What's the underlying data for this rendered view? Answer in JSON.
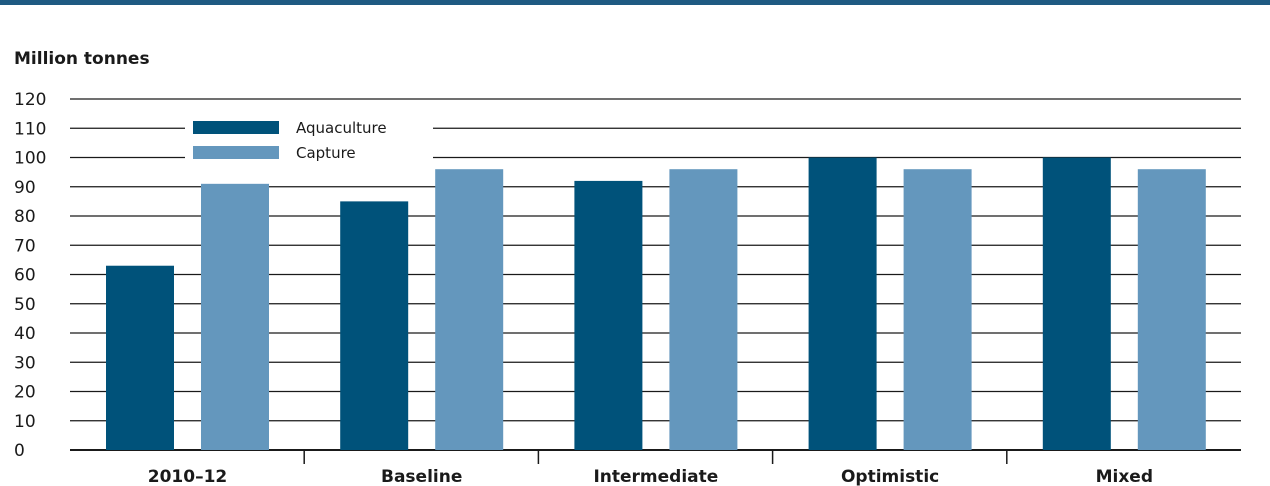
{
  "chart_data": {
    "type": "bar",
    "title": "",
    "ylabel": "Million tonnes",
    "xlabel": "",
    "ylim": [
      0,
      120
    ],
    "yticks": [
      0,
      10,
      20,
      30,
      40,
      50,
      60,
      70,
      80,
      90,
      100,
      110,
      120
    ],
    "categories": [
      "2010–12",
      "Baseline",
      "Intermediate",
      "Optimistic",
      "Mixed"
    ],
    "series": [
      {
        "name": "Aquaculture",
        "color": "#00527a",
        "values": [
          63,
          85,
          92,
          100,
          100
        ]
      },
      {
        "name": "Capture",
        "color": "#6497bd",
        "values": [
          91,
          96,
          96,
          96,
          96
        ]
      }
    ],
    "grid": true,
    "legend_position": "top-left"
  },
  "colors": {
    "top_rule": "#1f5a82",
    "gridline": "#1a1a1a"
  }
}
